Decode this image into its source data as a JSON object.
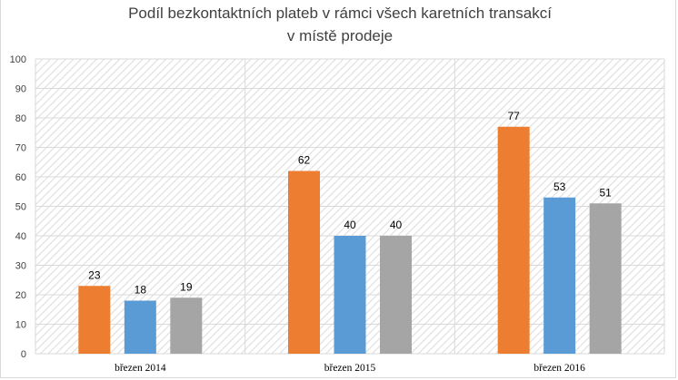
{
  "chart_data": {
    "type": "bar",
    "title_lines": [
      "Podíl bezkontaktních plateb v rámci všech karetních transakcí",
      "v místě prodeje"
    ],
    "categories": [
      "březen 2014",
      "březen 2015",
      "březen 2016"
    ],
    "series": [
      {
        "values": [
          23,
          62,
          77
        ],
        "color": "#ed7d31"
      },
      {
        "values": [
          18,
          40,
          53
        ],
        "color": "#5b9bd5"
      },
      {
        "values": [
          19,
          40,
          51
        ],
        "color": "#a5a5a5"
      }
    ],
    "ylim": [
      0,
      100
    ],
    "yticks": [
      0,
      10,
      20,
      30,
      40,
      50,
      60,
      70,
      80,
      90,
      100
    ],
    "xlabel": "",
    "ylabel": "",
    "grid": true,
    "legend": "none",
    "plot_background": "diagonal hatched light gray"
  }
}
